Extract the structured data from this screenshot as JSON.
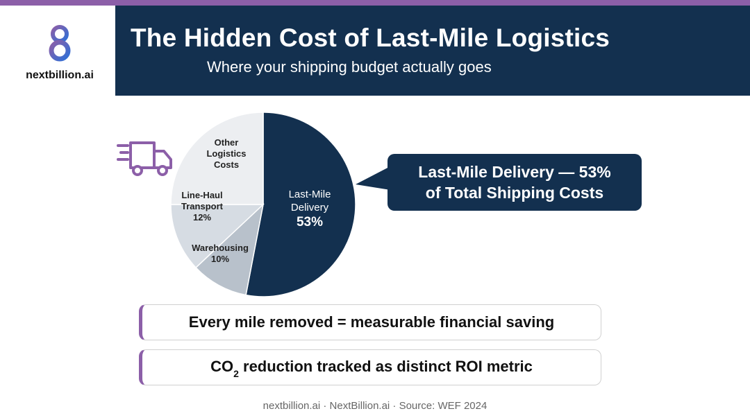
{
  "brand": {
    "name": "nextbillion.ai"
  },
  "header": {
    "title": "The Hidden Cost of Last-Mile Logistics",
    "subtitle": "Where your shipping budget actually goes"
  },
  "chart_data": {
    "type": "pie",
    "title": "",
    "slices": [
      {
        "label": "Last-Mile Delivery",
        "value": 53,
        "value_label": "53%",
        "color": "#13304f"
      },
      {
        "label": "Warehousing",
        "value": 10,
        "value_label": "10%",
        "color": "#b8c1cb"
      },
      {
        "label": "Line-Haul Transport",
        "value": 12,
        "value_label": "12%",
        "color": "#d6dce3"
      },
      {
        "label": "Other Logistics Costs",
        "value": 25,
        "value_label": "",
        "color": "#eceef1"
      }
    ]
  },
  "callout": {
    "line1": "Last-Mile Delivery — 53%",
    "line2": "of Total Shipping Costs"
  },
  "points": {
    "first": "Every mile removed = measurable financial saving",
    "second_prefix": "CO",
    "second_sub": "2",
    "second_suffix": " reduction tracked as distinct ROI metric"
  },
  "footer": {
    "text": "nextbillion.ai · NextBillion.ai · Source: WEF 2024"
  },
  "colors": {
    "navy": "#13304f",
    "accent": "#8c5fa8"
  },
  "icons": {
    "truck": "truck-icon",
    "logo": "logo-icon"
  }
}
